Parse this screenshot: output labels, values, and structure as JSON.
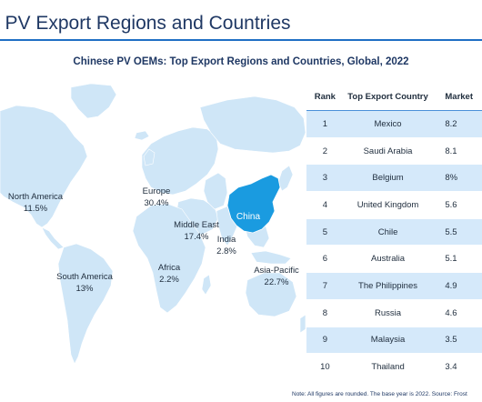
{
  "header": {
    "title": "o PV Export Regions and Countries",
    "subtitle": "Chinese PV OEMs: Top Export Regions and Countries, Global, 2022"
  },
  "colors": {
    "land": "#cfe6f7",
    "china": "#1a9be0",
    "table_stripe": "#d5e9fa",
    "title": "#1f3864",
    "rule": "#1f6fc4"
  },
  "chart_data": [
    {
      "type": "map",
      "regions": [
        {
          "name": "North America",
          "value": "11.5%"
        },
        {
          "name": "Europe",
          "value": "30.4%"
        },
        {
          "name": "Middle East",
          "value": "17.4%"
        },
        {
          "name": "India",
          "value": "2.8%"
        },
        {
          "name": "Africa",
          "value": "2.2%"
        },
        {
          "name": "South America",
          "value": "13%"
        },
        {
          "name": "Asia-Pacific",
          "value": "22.7%"
        }
      ],
      "highlight": "China"
    },
    {
      "type": "table",
      "columns": [
        "Rank",
        "Top Export Country",
        "Market"
      ],
      "rows": [
        [
          "1",
          "Mexico",
          "8.2"
        ],
        [
          "2",
          "Saudi Arabia",
          "8.1"
        ],
        [
          "3",
          "Belgium",
          "8%"
        ],
        [
          "4",
          "United Kingdom",
          "5.6"
        ],
        [
          "5",
          "Chile",
          "5.5"
        ],
        [
          "6",
          "Australia",
          "5.1"
        ],
        [
          "7",
          "The Philippines",
          "4.9"
        ],
        [
          "8",
          "Russia",
          "4.6"
        ],
        [
          "9",
          "Malaysia",
          "3.5"
        ],
        [
          "10",
          "Thailand",
          "3.4"
        ]
      ]
    }
  ],
  "note": "Note: All figures are rounded. The base year is 2022. Source: Frost"
}
